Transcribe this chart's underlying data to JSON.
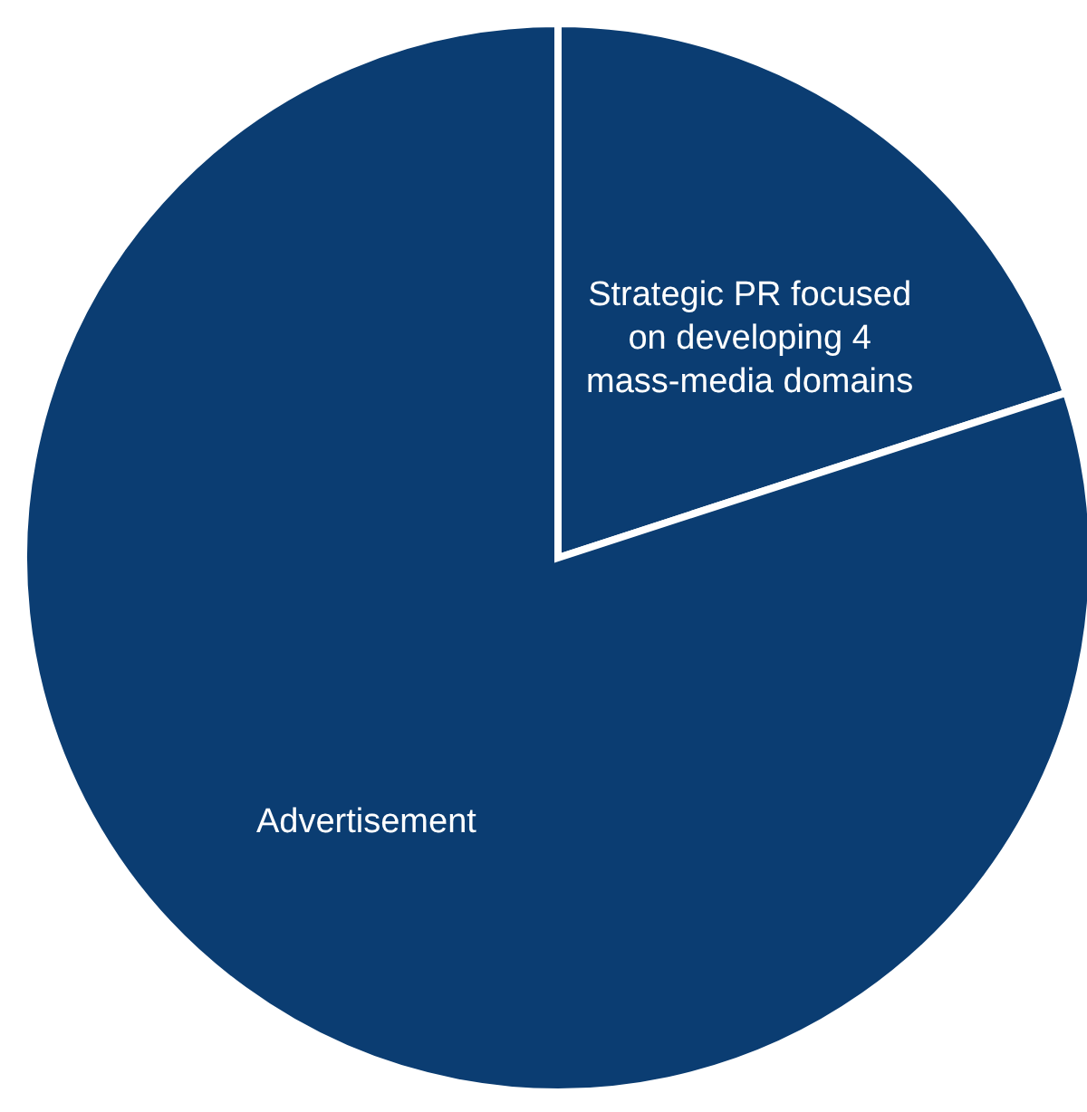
{
  "chart_data": {
    "type": "pie",
    "categories": [
      "Strategic PR focused on developing 4 mass-media domains",
      "Advertisement"
    ],
    "values": [
      20,
      80
    ],
    "colors": [
      "#0b3d72",
      "#0b3d72"
    ]
  }
}
